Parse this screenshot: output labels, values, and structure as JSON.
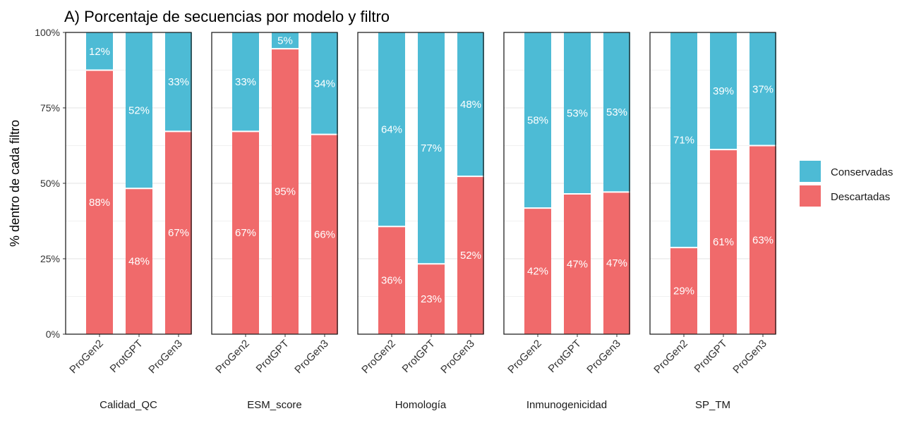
{
  "chart_data": {
    "type": "bar",
    "stacked": true,
    "title": "A) Porcentaje de secuencias por modelo y filtro",
    "ylabel": "% dentro de cada filtro",
    "ylim": [
      0,
      1
    ],
    "yticks": [
      "0%",
      "25%",
      "50%",
      "75%",
      "100%"
    ],
    "categories": [
      "ProGen2",
      "ProtGPT",
      "ProGen3"
    ],
    "legend": {
      "placement": "right",
      "entries": [
        {
          "name": "Conservadas",
          "color": "#4DBBD5"
        },
        {
          "name": "Descartadas",
          "color": "#F06A6B"
        }
      ]
    },
    "colors": {
      "Conservadas": "#4DBBD5",
      "Descartadas": "#F06A6B"
    },
    "panels": [
      {
        "name": "Calidad_QC",
        "descartadas": [
          0.875,
          0.483,
          0.672
        ],
        "conservadas": [
          0.125,
          0.517,
          0.328
        ],
        "label_desc": [
          "88%",
          "48%",
          "67%"
        ],
        "label_cons": [
          "12%",
          "52%",
          "33%"
        ]
      },
      {
        "name": "ESM_score",
        "descartadas": [
          0.672,
          0.946,
          0.662
        ],
        "conservadas": [
          0.328,
          0.054,
          0.338
        ],
        "label_desc": [
          "67%",
          "95%",
          "66%"
        ],
        "label_cons": [
          "33%",
          "5%",
          "34%"
        ]
      },
      {
        "name": "Homología",
        "descartadas": [
          0.357,
          0.233,
          0.523
        ],
        "conservadas": [
          0.643,
          0.767,
          0.477
        ],
        "label_desc": [
          "36%",
          "23%",
          "52%"
        ],
        "label_cons": [
          "64%",
          "77%",
          "48%"
        ]
      },
      {
        "name": "Inmunogenicidad",
        "descartadas": [
          0.418,
          0.465,
          0.471
        ],
        "conservadas": [
          0.582,
          0.535,
          0.529
        ],
        "label_desc": [
          "42%",
          "47%",
          "47%"
        ],
        "label_cons": [
          "58%",
          "53%",
          "53%"
        ]
      },
      {
        "name": "SP_TM",
        "descartadas": [
          0.287,
          0.612,
          0.625
        ],
        "conservadas": [
          0.713,
          0.388,
          0.375
        ],
        "label_desc": [
          "29%",
          "61%",
          "63%"
        ],
        "label_cons": [
          "71%",
          "39%",
          "37%"
        ]
      }
    ]
  }
}
